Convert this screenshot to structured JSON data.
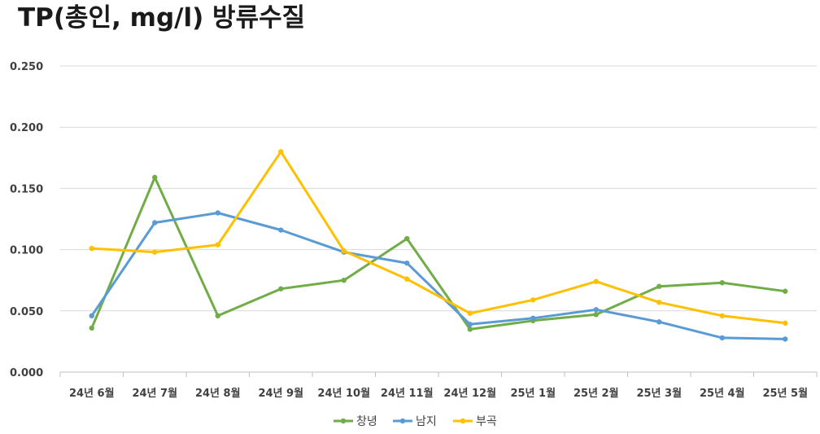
{
  "chart_data": {
    "type": "line",
    "title": "TP(총인, mg/l) 방류수질",
    "xlabel": "",
    "ylabel": "",
    "ylim": [
      0,
      0.25
    ],
    "yticks": [
      "0.000",
      "0.050",
      "0.100",
      "0.150",
      "0.200",
      "0.250"
    ],
    "ytick_values": [
      0,
      0.05,
      0.1,
      0.15,
      0.2,
      0.25
    ],
    "grid": true,
    "legend_position": "bottom",
    "categories": [
      "24년 6월",
      "24년 7월",
      "24년 8월",
      "24년 9월",
      "24년 10월",
      "24년 11월",
      "24년 12월",
      "25년 1월",
      "25년 2월",
      "25년 3월",
      "25년 4월",
      "25년 5월"
    ],
    "series": [
      {
        "name": "창녕",
        "color": "#70ad47",
        "values": [
          0.036,
          0.159,
          0.046,
          0.068,
          0.075,
          0.109,
          0.035,
          0.042,
          0.047,
          0.07,
          0.073,
          0.066
        ]
      },
      {
        "name": "남지",
        "color": "#5b9bd5",
        "values": [
          0.046,
          0.122,
          0.13,
          0.116,
          0.098,
          0.089,
          0.039,
          0.044,
          0.051,
          0.041,
          0.028,
          0.027
        ]
      },
      {
        "name": "부곡",
        "color": "#ffc000",
        "values": [
          0.101,
          0.098,
          0.104,
          0.18,
          0.099,
          0.076,
          0.048,
          0.059,
          0.074,
          0.057,
          0.046,
          0.04
        ]
      }
    ]
  }
}
